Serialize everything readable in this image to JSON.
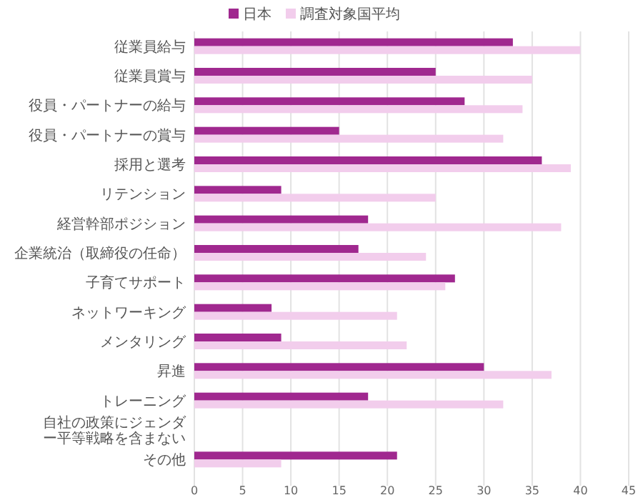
{
  "chart_data": {
    "type": "bar",
    "orientation": "horizontal",
    "categories": [
      "従業員給与",
      "従業員賞与",
      "役員・パートナーの給与",
      "役員・パートナーの賞与",
      "採用と選考",
      "リテンション",
      "経営幹部ポジション",
      "企業統治（取締役の任命）",
      "子育てサポート",
      "ネットワーキング",
      "メンタリング",
      "昇進",
      "トレーニング",
      "自社の政策にジェンダー平等戦略を含まない",
      "その他"
    ],
    "series": [
      {
        "name": "日本",
        "color": "#a0288f",
        "values": [
          33,
          25,
          28,
          15,
          36,
          9,
          18,
          17,
          27,
          8,
          9,
          30,
          18,
          0,
          21
        ]
      },
      {
        "name": "調査対象国平均",
        "color": "#f2cdec",
        "values": [
          40,
          35,
          34,
          32,
          39,
          25,
          38,
          24,
          26,
          21,
          22,
          37,
          32,
          0,
          9
        ]
      }
    ],
    "xlim": [
      0,
      45
    ],
    "xticks": [
      0,
      5,
      10,
      15,
      20,
      25,
      30,
      35,
      40,
      45
    ],
    "grid": "x",
    "legend": "top"
  }
}
